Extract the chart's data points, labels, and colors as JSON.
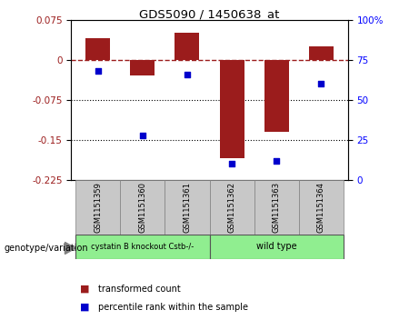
{
  "title": "GDS5090 / 1450638_at",
  "samples": [
    "GSM1151359",
    "GSM1151360",
    "GSM1151361",
    "GSM1151362",
    "GSM1151363",
    "GSM1151364"
  ],
  "bar_values": [
    0.04,
    -0.03,
    0.05,
    -0.185,
    -0.135,
    0.025
  ],
  "dot_values": [
    68,
    28,
    66,
    10,
    12,
    60
  ],
  "bar_color": "#9B1C1C",
  "dot_color": "#0000CC",
  "ylim_left": [
    -0.225,
    0.075
  ],
  "ylim_right": [
    0,
    100
  ],
  "yticks_left": [
    0.075,
    0,
    -0.075,
    -0.15,
    -0.225
  ],
  "yticks_right": [
    100,
    75,
    50,
    25,
    0
  ],
  "dotted_lines": [
    -0.075,
    -0.15
  ],
  "group1_label": "cystatin B knockout Cstb-/-",
  "group2_label": "wild type",
  "group1_color": "#90EE90",
  "group2_color": "#90EE90",
  "group1_indices": [
    0,
    1,
    2
  ],
  "group2_indices": [
    3,
    4,
    5
  ],
  "xlabel_bottom": "genotype/variation",
  "legend_bar_label": "transformed count",
  "legend_dot_label": "percentile rank within the sample",
  "bar_width": 0.55,
  "sample_box_color": "#C8C8C8",
  "spine_color": "gray"
}
